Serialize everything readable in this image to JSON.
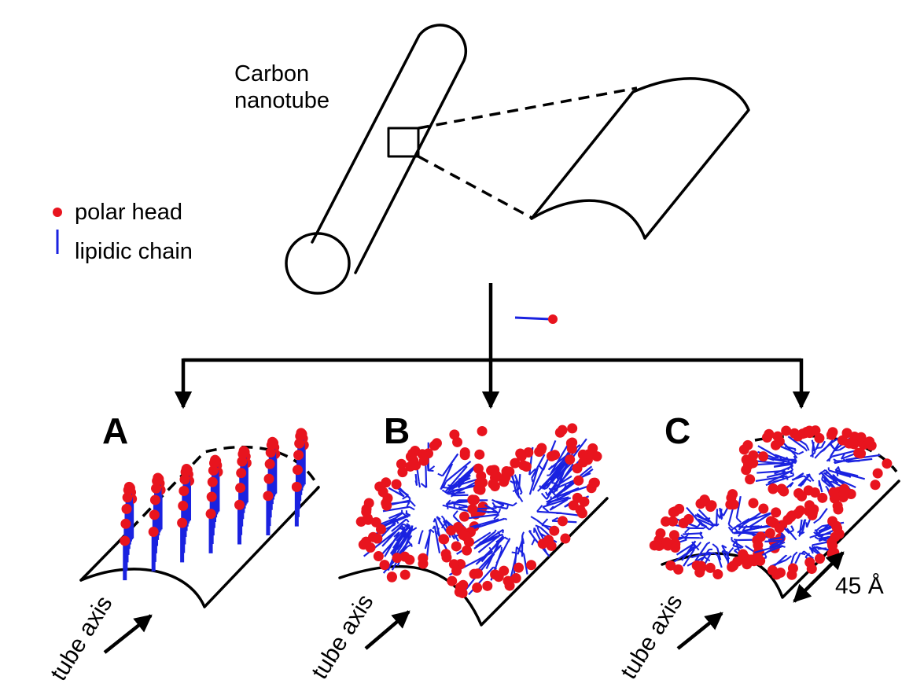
{
  "nanotube_label": {
    "line1": "Carbon",
    "line2": "nanotube"
  },
  "legend": {
    "head_label": "polar head",
    "chain_label": "lipidic chain"
  },
  "panels": [
    {
      "letter": "A",
      "axis_label": "tube axis"
    },
    {
      "letter": "B",
      "axis_label": "tube axis"
    },
    {
      "letter": "C",
      "axis_label": "tube axis"
    }
  ],
  "dimension_label": "45 Å",
  "colors": {
    "head": "#e8141e",
    "chain": "#1a22e0",
    "line": "#000000"
  }
}
